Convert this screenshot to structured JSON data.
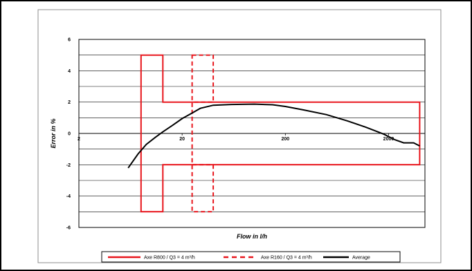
{
  "chart_data": {
    "type": "line",
    "title": "",
    "xlabel": "Flow in l/h",
    "ylabel": "Error in %",
    "x_scale": "log",
    "xlim": [
      2,
      4500
    ],
    "ylim": [
      -6,
      6
    ],
    "x_ticks": [
      "2",
      "20",
      "200",
      "2000"
    ],
    "x_tick_values": [
      2,
      20,
      200,
      2000
    ],
    "y_ticks": [
      "6",
      "4",
      "2",
      "0",
      "-2",
      "-4",
      "-6"
    ],
    "y_tick_values": [
      6,
      4,
      2,
      0,
      -2,
      -4,
      -6
    ],
    "grid": "horizontal",
    "legend_position": "bottom",
    "series": [
      {
        "name": "Axe R800 / Q3 = 4 m³/h",
        "color": "#e8141b",
        "style": "solid",
        "closed": true,
        "points": [
          [
            8,
            5
          ],
          [
            13,
            5
          ],
          [
            13,
            2
          ],
          [
            4000,
            2
          ],
          [
            4000,
            -2
          ],
          [
            13,
            -2
          ],
          [
            13,
            -5
          ],
          [
            8,
            -5
          ]
        ]
      },
      {
        "name": "Axe R160 / Q3 = 4 m³/h",
        "color": "#e8141b",
        "style": "dashed",
        "closed": true,
        "points": [
          [
            25,
            5
          ],
          [
            40,
            5
          ],
          [
            40,
            2
          ],
          [
            25,
            2
          ],
          [
            25,
            -2
          ],
          [
            40,
            -2
          ],
          [
            40,
            -5
          ],
          [
            25,
            -5
          ]
        ]
      },
      {
        "name": "Average",
        "color": "#000000",
        "style": "solid",
        "closed": false,
        "points": [
          [
            6,
            -2.2
          ],
          [
            7.5,
            -1.3
          ],
          [
            9,
            -0.7
          ],
          [
            11,
            -0.25
          ],
          [
            13,
            0.1
          ],
          [
            16,
            0.5
          ],
          [
            20,
            0.95
          ],
          [
            25,
            1.3
          ],
          [
            30,
            1.6
          ],
          [
            40,
            1.8
          ],
          [
            60,
            1.85
          ],
          [
            100,
            1.87
          ],
          [
            150,
            1.83
          ],
          [
            200,
            1.72
          ],
          [
            300,
            1.5
          ],
          [
            500,
            1.2
          ],
          [
            800,
            0.8
          ],
          [
            1200,
            0.4
          ],
          [
            1800,
            -0.05
          ],
          [
            2300,
            -0.4
          ],
          [
            2800,
            -0.6
          ],
          [
            3500,
            -0.6
          ],
          [
            4000,
            -0.8
          ]
        ]
      }
    ]
  }
}
